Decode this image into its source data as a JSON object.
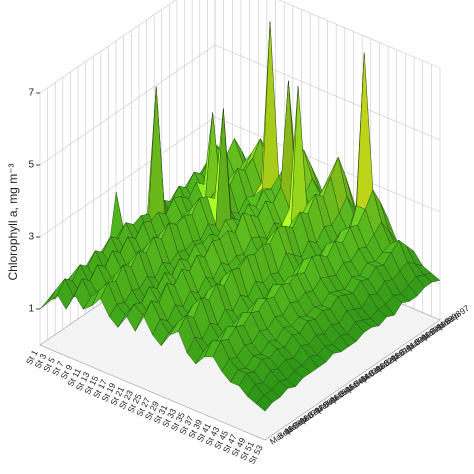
{
  "chart_data": {
    "type": "surface",
    "z_label": "Chlorophyll a, mg m⁻³",
    "stations": [
      "St 1",
      "St 3",
      "St 5",
      "St 7",
      "St 9",
      "St 11",
      "St 13",
      "St 15",
      "St 17",
      "St 19",
      "St 21",
      "St 23",
      "St 25",
      "St 27",
      "St 29",
      "St 31",
      "St 33",
      "St 35",
      "St 37",
      "St 39",
      "St 41",
      "St 43",
      "St 45",
      "St 47",
      "St 49",
      "St 51",
      "St 53"
    ],
    "dates": [
      "Sep-97",
      "Mar-98",
      "Sep-98",
      "Mar-99",
      "Sep-99",
      "Mar-00",
      "Sep-00",
      "Mar-01",
      "Sep-01",
      "Mar-02",
      "Sep-02",
      "Mar-03",
      "Sep-03",
      "Mar-04",
      "Sep-04",
      "Mar-05",
      "Sep-05",
      "Mar-06",
      "Sep-06",
      "Mar-07",
      "Sep-07",
      "Mar-08",
      "Sep-08",
      "Mar-09"
    ],
    "values": [
      [
        1.2,
        1.5,
        1.8,
        1.4,
        2.0,
        1.6,
        1.9,
        2.2,
        1.7,
        1.5,
        2.1,
        1.8,
        2.4,
        1.9,
        1.6,
        2.0,
        2.3,
        1.8,
        1.5,
        1.9,
        2.2,
        1.7,
        1.4,
        1.6,
        1.3,
        1.2,
        1.1
      ],
      [
        1.4,
        1.9,
        2.3,
        1.8,
        2.6,
        2.0,
        2.4,
        2.9,
        2.1,
        1.8,
        2.5,
        2.2,
        3.0,
        2.4,
        2.0,
        2.6,
        3.1,
        2.3,
        1.9,
        2.4,
        2.8,
        2.1,
        1.7,
        1.9,
        1.5,
        1.3,
        1.2
      ],
      [
        1.6,
        2.2,
        2.7,
        2.3,
        3.1,
        2.5,
        2.9,
        3.4,
        2.6,
        2.2,
        3.0,
        2.7,
        3.6,
        2.9,
        2.5,
        3.2,
        3.8,
        2.8,
        2.3,
        7.0,
        3.3,
        2.5,
        2.0,
        2.2,
        1.7,
        1.4,
        1.2
      ],
      [
        1.5,
        2.0,
        2.5,
        2.1,
        2.8,
        2.3,
        2.6,
        3.0,
        2.4,
        7.0,
        2.8,
        2.4,
        3.2,
        2.6,
        2.2,
        2.9,
        3.4,
        2.5,
        2.1,
        2.9,
        2.9,
        2.3,
        1.9,
        2.0,
        1.6,
        1.3,
        1.1
      ],
      [
        1.3,
        1.8,
        2.2,
        1.9,
        2.5,
        2.1,
        2.4,
        2.8,
        2.2,
        2.5,
        2.6,
        2.2,
        5.8,
        2.4,
        2.0,
        2.7,
        3.0,
        2.3,
        1.9,
        2.3,
        2.6,
        2.1,
        1.8,
        1.8,
        1.5,
        1.2,
        1.1
      ],
      [
        1.4,
        1.9,
        2.4,
        2.0,
        2.7,
        2.2,
        2.6,
        3.0,
        2.3,
        2.0,
        2.7,
        2.4,
        3.0,
        2.5,
        6.0,
        2.8,
        3.2,
        2.4,
        2.0,
        2.5,
        2.7,
        2.2,
        1.9,
        1.9,
        1.6,
        1.3,
        1.2
      ],
      [
        1.2,
        1.7,
        2.1,
        1.8,
        2.4,
        4.5,
        2.3,
        2.7,
        2.0,
        1.8,
        2.4,
        2.1,
        2.7,
        2.2,
        1.9,
        2.5,
        2.8,
        2.1,
        1.8,
        2.2,
        2.4,
        2.0,
        1.7,
        1.7,
        1.4,
        1.2,
        1.0
      ],
      [
        1.3,
        1.8,
        2.3,
        1.9,
        2.6,
        2.1,
        2.5,
        2.9,
        2.2,
        1.9,
        2.6,
        2.3,
        2.9,
        2.4,
        2.0,
        2.6,
        3.0,
        2.3,
        1.9,
        2.4,
        2.6,
        2.1,
        1.8,
        1.8,
        1.5,
        1.2,
        1.1
      ],
      [
        1.2,
        1.6,
        2.0,
        1.7,
        2.3,
        1.9,
        2.2,
        2.6,
        5.2,
        1.7,
        2.3,
        2.0,
        2.6,
        2.1,
        1.8,
        2.3,
        2.7,
        2.0,
        1.7,
        2.1,
        2.3,
        1.9,
        1.6,
        1.6,
        1.3,
        1.1,
        1.0
      ],
      [
        1.3,
        1.7,
        2.2,
        1.8,
        2.5,
        2.0,
        2.4,
        2.8,
        2.1,
        1.8,
        2.5,
        2.2,
        2.8,
        2.3,
        1.9,
        2.5,
        2.9,
        2.2,
        1.8,
        2.3,
        2.5,
        2.0,
        1.7,
        1.7,
        1.4,
        1.2,
        1.1
      ],
      [
        1.4,
        1.9,
        5.5,
        2.0,
        2.6,
        2.2,
        2.5,
        2.9,
        2.3,
        1.9,
        2.6,
        2.3,
        3.0,
        2.4,
        2.0,
        2.6,
        3.0,
        2.4,
        2.0,
        2.4,
        2.6,
        2.1,
        1.8,
        1.8,
        1.5,
        1.3,
        1.1
      ],
      [
        1.2,
        1.6,
        2.1,
        1.7,
        2.3,
        1.9,
        2.2,
        2.6,
        2.0,
        1.7,
        2.3,
        2.0,
        2.6,
        2.1,
        1.8,
        2.3,
        2.7,
        2.0,
        1.7,
        2.1,
        2.3,
        1.9,
        1.6,
        1.6,
        1.3,
        1.1,
        1.0
      ],
      [
        1.3,
        1.8,
        2.2,
        1.8,
        2.5,
        2.0,
        2.4,
        2.7,
        2.1,
        1.8,
        2.5,
        2.1,
        2.8,
        2.2,
        1.9,
        2.4,
        2.8,
        2.1,
        1.8,
        2.2,
        2.4,
        2.0,
        1.7,
        1.7,
        1.4,
        1.2,
        1.0
      ],
      [
        2.8,
        1.7,
        2.1,
        1.7,
        2.4,
        1.9,
        2.3,
        2.6,
        2.0,
        1.7,
        2.4,
        2.0,
        2.7,
        2.1,
        1.8,
        2.3,
        2.7,
        2.0,
        1.7,
        2.1,
        2.3,
        1.9,
        1.6,
        1.6,
        1.3,
        1.1,
        1.0
      ],
      [
        1.3,
        1.8,
        2.3,
        1.9,
        2.5,
        2.0,
        2.4,
        2.8,
        2.1,
        1.8,
        2.5,
        2.2,
        2.8,
        2.3,
        1.9,
        2.4,
        2.8,
        2.2,
        1.8,
        2.3,
        2.4,
        2.0,
        1.7,
        1.7,
        1.4,
        1.2,
        1.1
      ],
      [
        1.2,
        1.6,
        2.0,
        1.7,
        2.2,
        1.8,
        2.2,
        2.5,
        1.9,
        1.7,
        2.2,
        1.9,
        2.5,
        2.0,
        1.7,
        2.2,
        2.6,
        1.9,
        1.7,
        2.0,
        2.2,
        1.8,
        1.6,
        1.5,
        1.3,
        1.1,
        1.0
      ],
      [
        1.3,
        1.7,
        2.2,
        1.8,
        2.4,
        2.0,
        2.3,
        2.7,
        2.1,
        1.8,
        2.4,
        2.1,
        2.7,
        2.2,
        1.9,
        2.4,
        2.7,
        2.1,
        1.8,
        2.2,
        2.3,
        1.9,
        1.7,
        1.6,
        1.4,
        1.2,
        1.0
      ],
      [
        1.1,
        1.5,
        1.9,
        1.6,
        2.1,
        1.7,
        2.0,
        2.4,
        1.8,
        1.6,
        2.1,
        1.8,
        2.4,
        1.9,
        1.6,
        2.1,
        2.4,
        1.8,
        1.6,
        1.9,
        2.1,
        1.7,
        1.5,
        1.4,
        1.2,
        1.1,
        1.0
      ],
      [
        1.2,
        1.6,
        2.1,
        1.7,
        2.3,
        1.9,
        2.2,
        2.6,
        2.0,
        1.7,
        2.3,
        2.0,
        2.6,
        2.1,
        1.8,
        2.3,
        2.6,
        2.0,
        1.7,
        2.1,
        2.2,
        1.8,
        1.6,
        1.5,
        1.3,
        1.1,
        1.0
      ],
      [
        1.1,
        1.5,
        1.8,
        1.5,
        2.0,
        1.7,
        1.9,
        2.3,
        1.8,
        1.5,
        2.0,
        1.7,
        2.3,
        1.8,
        1.6,
        2.0,
        2.3,
        1.7,
        1.5,
        1.8,
        2.0,
        1.6,
        1.4,
        1.4,
        1.2,
        1.0,
        0.9
      ],
      [
        1.2,
        1.6,
        2.0,
        1.6,
        2.2,
        1.8,
        2.1,
        2.5,
        1.9,
        1.6,
        2.2,
        1.9,
        2.5,
        2.0,
        1.7,
        2.2,
        2.5,
        1.9,
        1.6,
        2.0,
        2.1,
        1.7,
        1.5,
        1.5,
        1.3,
        1.1,
        1.0
      ],
      [
        1.0,
        1.4,
        1.7,
        1.4,
        1.9,
        1.6,
        1.8,
        2.2,
        1.7,
        1.5,
        1.9,
        1.6,
        2.1,
        1.7,
        1.5,
        1.9,
        2.1,
        1.6,
        1.4,
        1.7,
        1.9,
        1.5,
        1.3,
        1.3,
        1.1,
        1.0,
        0.9
      ],
      [
        1.1,
        1.5,
        1.9,
        1.5,
        2.1,
        1.7,
        2.0,
        2.3,
        1.8,
        1.6,
        2.0,
        1.8,
        2.3,
        1.9,
        1.6,
        2.0,
        2.3,
        1.8,
        1.5,
        1.9,
        2.0,
        1.6,
        1.4,
        1.4,
        1.2,
        1.0,
        0.9
      ],
      [
        1.0,
        1.3,
        1.6,
        1.3,
        1.8,
        1.5,
        1.7,
        2.0,
        1.6,
        1.4,
        1.8,
        1.5,
        2.0,
        1.6,
        1.4,
        1.8,
        2.0,
        1.5,
        1.3,
        1.6,
        1.7,
        1.4,
        1.2,
        1.2,
        1.0,
        0.9,
        0.8
      ]
    ],
    "zlim": [
      0,
      7
    ],
    "zticks": [
      1,
      3,
      5,
      7
    ],
    "grid": true,
    "colorscale": [
      [
        0,
        "#0f7a12"
      ],
      [
        2.5,
        "#5ec21f"
      ],
      [
        4.5,
        "#e6e619"
      ],
      [
        7,
        "#c4102a"
      ]
    ]
  }
}
